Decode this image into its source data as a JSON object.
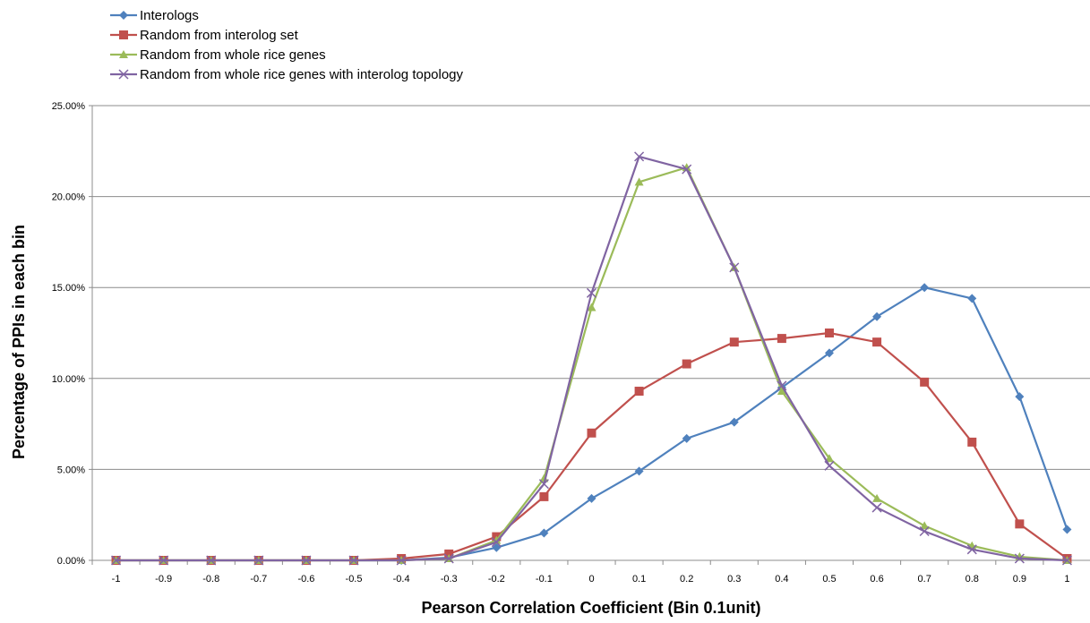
{
  "chart_data": {
    "type": "line",
    "xlabel": "Pearson Correlation Coefficient  (Bin  0.1unit)",
    "ylabel": "Percentage of PPIs  in each bin",
    "categories": [
      "-1",
      "-0.9",
      "-0.8",
      "-0.7",
      "-0.6",
      "-0.5",
      "-0.4",
      "-0.3",
      "-0.2",
      "-0.1",
      "0",
      "0.1",
      "0.2",
      "0.3",
      "0.4",
      "0.5",
      "0.6",
      "0.7",
      "0.8",
      "0.9",
      "1"
    ],
    "ylim": [
      0,
      25
    ],
    "yticks": [
      "0.00%",
      "5.00%",
      "10.00%",
      "15.00%",
      "20.00%",
      "25.00%"
    ],
    "grid": true,
    "legend_position": "top-left",
    "series": [
      {
        "name": "Interologs",
        "color": "#4F81BD",
        "marker": "diamond",
        "values": [
          0,
          0,
          0,
          0,
          0,
          0,
          0,
          0.15,
          0.7,
          1.5,
          3.4,
          4.9,
          6.7,
          7.6,
          9.5,
          11.4,
          13.4,
          15.0,
          14.4,
          9.0,
          1.7
        ]
      },
      {
        "name": "Random from interolog set",
        "color": "#C0504D",
        "marker": "square",
        "values": [
          0,
          0,
          0,
          0,
          0,
          0,
          0.1,
          0.35,
          1.3,
          3.5,
          7.0,
          9.3,
          10.8,
          12.0,
          12.2,
          12.5,
          12.0,
          9.8,
          6.5,
          2.0,
          0.1
        ]
      },
      {
        "name": "Random from whole rice genes",
        "color": "#9BBB59",
        "marker": "triangle",
        "values": [
          0,
          0,
          0,
          0,
          0,
          0,
          0,
          0.1,
          1.1,
          4.5,
          13.9,
          20.8,
          21.6,
          16.1,
          9.3,
          5.6,
          3.4,
          1.9,
          0.8,
          0.2,
          0
        ]
      },
      {
        "name": "Random from whole rice genes with interolog topology",
        "color": "#8064A2",
        "marker": "x",
        "values": [
          0,
          0,
          0,
          0,
          0,
          0,
          0,
          0.1,
          1.0,
          4.2,
          14.7,
          22.2,
          21.5,
          16.1,
          9.6,
          5.2,
          2.9,
          1.6,
          0.6,
          0.1,
          0
        ]
      }
    ]
  }
}
